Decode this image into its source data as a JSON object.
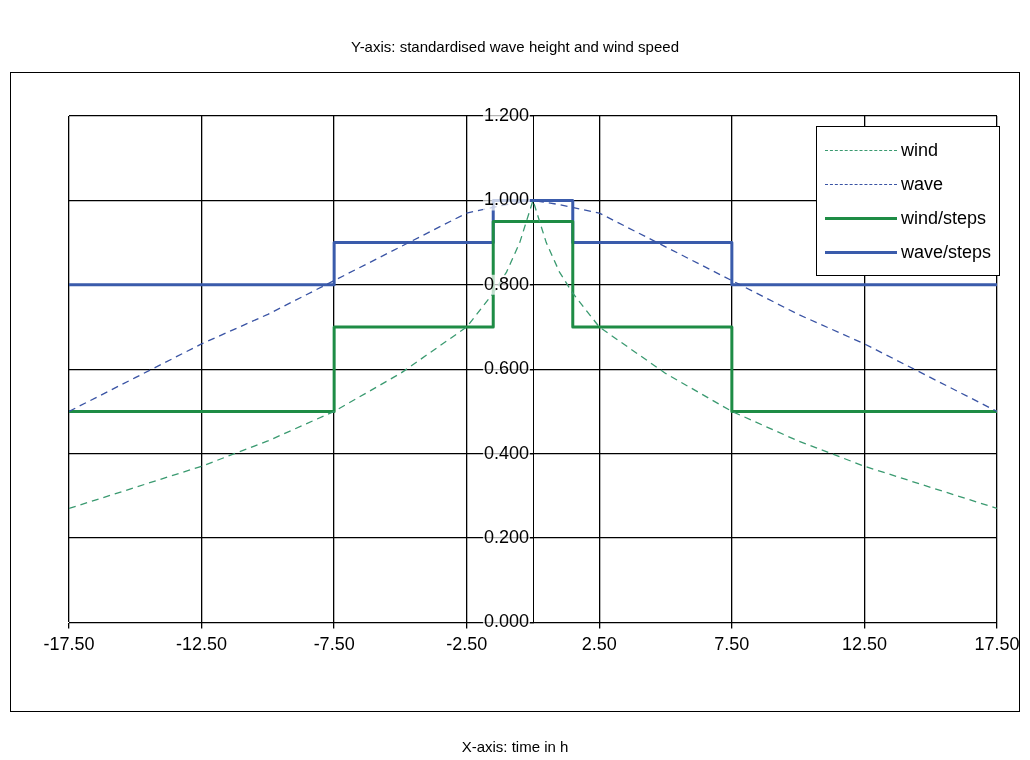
{
  "chart_data": {
    "type": "line",
    "title": "Y-axis: standardised wave height and wind speed",
    "annotations": [
      "X-axis: time in h"
    ],
    "xlim": [
      -17.5,
      17.5
    ],
    "xticks": [
      {
        "value": -17.5,
        "label": "-17.50"
      },
      {
        "value": -12.5,
        "label": "-12.50"
      },
      {
        "value": -7.5,
        "label": "-7.50"
      },
      {
        "value": -2.5,
        "label": "-2.50"
      },
      {
        "value": 2.5,
        "label": "2.50"
      },
      {
        "value": 7.5,
        "label": "7.50"
      },
      {
        "value": 12.5,
        "label": "12.50"
      },
      {
        "value": 17.5,
        "label": "17.50"
      }
    ],
    "ylim": [
      0,
      1.2
    ],
    "yticks": [
      {
        "value": 0,
        "label": "0.000"
      },
      {
        "value": 0.2,
        "label": "0.200"
      },
      {
        "value": 0.4,
        "label": "0.400"
      },
      {
        "value": 0.6,
        "label": "0.600"
      },
      {
        "value": 0.8,
        "label": "0.800"
      },
      {
        "value": 1.0,
        "label": "1.000"
      },
      {
        "value": 1.2,
        "label": "1.200"
      }
    ],
    "grid": true,
    "legend": "top right",
    "marker": "none",
    "series": [
      {
        "name": "wind",
        "color": "#3a9a70",
        "line_style": "dashed",
        "x": [
          -17.5,
          -15,
          -12.5,
          -10,
          -7.5,
          -5,
          -2.5,
          -1.5,
          -1,
          -0.5,
          0,
          0.5,
          1,
          1.5,
          2.5,
          5,
          7.5,
          10,
          12.5,
          15,
          17.5
        ],
        "values": [
          0.27,
          0.32,
          0.37,
          0.43,
          0.5,
          0.59,
          0.7,
          0.78,
          0.83,
          0.9,
          1.0,
          0.9,
          0.83,
          0.78,
          0.7,
          0.59,
          0.5,
          0.43,
          0.37,
          0.32,
          0.27
        ]
      },
      {
        "name": "wave",
        "color": "#3953a4",
        "line_style": "dashed",
        "x": [
          -17.5,
          -15,
          -12.5,
          -10,
          -7.5,
          -5,
          -2.5,
          -1,
          0,
          1,
          2.5,
          5,
          7.5,
          10,
          12.5,
          15,
          17.5
        ],
        "values": [
          0.5,
          0.58,
          0.66,
          0.73,
          0.81,
          0.89,
          0.97,
          0.99,
          1.0,
          0.99,
          0.97,
          0.89,
          0.81,
          0.73,
          0.66,
          0.58,
          0.5
        ]
      },
      {
        "name": "wind/steps",
        "type": "step",
        "color": "#1e8c45",
        "line_style": "solid",
        "x": [
          -17.5,
          -7.5,
          -1.5,
          1.5,
          7.5,
          17.5
        ],
        "values": [
          0.5,
          0.7,
          0.95,
          0.7,
          0.5,
          0.5
        ]
      },
      {
        "name": "wave/steps",
        "type": "step",
        "color": "#3a5bab",
        "line_style": "solid",
        "x": [
          -17.5,
          -7.5,
          -1.5,
          1.5,
          7.5,
          17.5
        ],
        "values": [
          0.8,
          0.9,
          1.0,
          0.9,
          0.8,
          0.8
        ]
      }
    ]
  }
}
